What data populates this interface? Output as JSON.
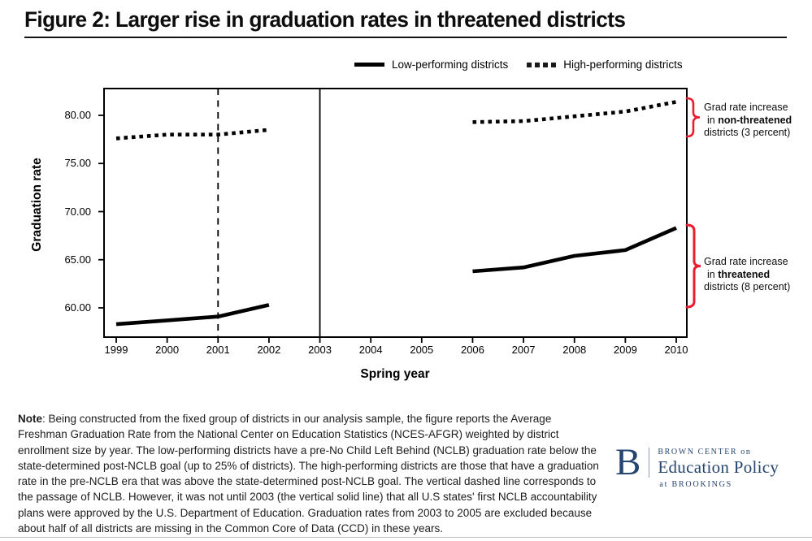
{
  "page": {
    "title": "Figure 2: Larger rise in graduation rates in threatened districts"
  },
  "legend": {
    "items": [
      {
        "label": "Low-performing districts",
        "style": "solid"
      },
      {
        "label": "High-performing districts",
        "style": "dotted"
      }
    ]
  },
  "chart_data": {
    "type": "line",
    "xlabel": "Spring year",
    "ylabel": "Graduation rate",
    "x_ticks": [
      "1999",
      "2000",
      "2001",
      "2002",
      "2003",
      "2004",
      "2005",
      "2006",
      "2007",
      "2008",
      "2009",
      "2010"
    ],
    "y_ticks": [
      {
        "label": "80.00",
        "value": 80
      },
      {
        "label": "75.00",
        "value": 75
      },
      {
        "label": "70.00",
        "value": 70
      },
      {
        "label": "65.00",
        "value": 65
      },
      {
        "label": "60.00",
        "value": 60
      }
    ],
    "xlim": [
      1998.75,
      2010.2
    ],
    "ylim": [
      57.0,
      82.8
    ],
    "grid": false,
    "legend_position": "top",
    "series": [
      {
        "name": "Low-performing districts",
        "style": "solid",
        "segments": [
          {
            "x": [
              1999,
              2000,
              2001,
              2002
            ],
            "y": [
              58.3,
              58.7,
              59.1,
              60.3
            ]
          },
          {
            "x": [
              2006,
              2007,
              2008,
              2009,
              2010
            ],
            "y": [
              63.8,
              64.2,
              65.4,
              66.0,
              68.3
            ]
          }
        ]
      },
      {
        "name": "High-performing districts",
        "style": "dotted",
        "segments": [
          {
            "x": [
              1999,
              2000,
              2001,
              2002
            ],
            "y": [
              77.6,
              78.0,
              78.0,
              78.5
            ]
          },
          {
            "x": [
              2006,
              2007,
              2008,
              2009,
              2010
            ],
            "y": [
              79.3,
              79.4,
              79.9,
              80.4,
              81.4
            ]
          }
        ]
      }
    ],
    "vlines": [
      {
        "x": 2001,
        "style": "dashed",
        "meaning": "passage of NCLB"
      },
      {
        "x": 2003,
        "style": "solid",
        "meaning": "first NCLB accountability plans approved"
      }
    ]
  },
  "annotations": {
    "non_threatened": {
      "line1": "Grad rate increase",
      "line2_prefix": "in ",
      "line2_bold": "non-threatened",
      "line3": "districts (3 percent)"
    },
    "threatened": {
      "line1": "Grad rate increase",
      "line2_prefix": "in ",
      "line2_bold": "threatened",
      "line3": "districts (8 percent)"
    }
  },
  "note": {
    "label": "Note",
    "text": ": Being constructed from the fixed group of districts in our analysis sample, the figure reports the Average Freshman Graduation Rate from the National Center on Education Statistics (NCES-AFGR) weighted by district enrollment size by year. The low-performing districts have a pre-No Child Left Behind (NCLB) graduation rate below the state-determined post-NCLB goal (up to 25% of districts). The high-performing districts are those that have a graduation rate in the pre-NCLB era that was above the state-determined post-NCLB goal. The vertical dashed line corresponds to the passage of NCLB. However, it was not until 2003 (the vertical solid line) that all U.S states' first NCLB accountability plans were approved by the U.S. Department of Education. Graduation rates from 2003 to 2005 are excluded because about half of all districts are missing in the Common Core of Data (CCD) in these years."
  },
  "logo": {
    "b": "B",
    "line1": "BROWN CENTER on",
    "line2": "Education Policy",
    "line3": "at BROOKINGS"
  },
  "colors": {
    "line_black": "#000000",
    "brace_red": "#ec1b2e",
    "logo_navy": "#26456e",
    "title_text": "#0d0d0d"
  }
}
